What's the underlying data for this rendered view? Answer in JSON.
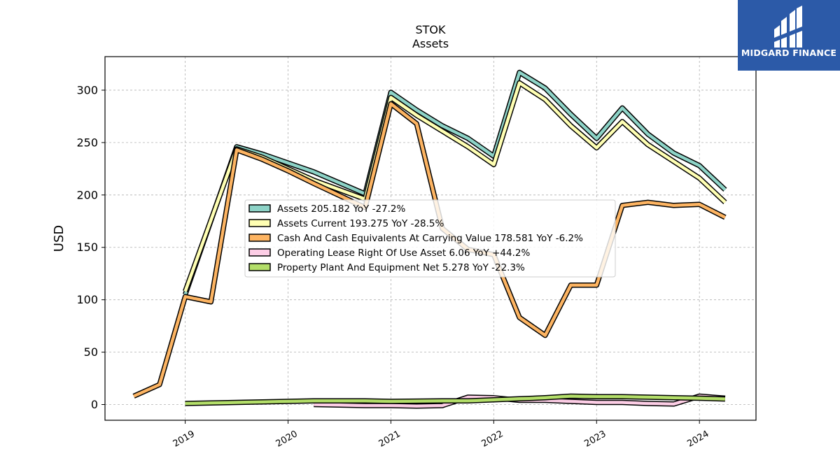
{
  "brand": {
    "name": "MIDGARD FINANCE",
    "background": "#2c5aa8"
  },
  "chart_data": {
    "type": "line",
    "title": "STOK",
    "subtitle": "Assets",
    "xlabel": "",
    "ylabel": "USD",
    "ylim": [
      -15,
      332
    ],
    "xlim": [
      2018.22,
      2024.55
    ],
    "yticks": [
      0,
      50,
      100,
      150,
      200,
      250,
      300
    ],
    "xticks": [
      {
        "value": 2019,
        "label": "2019"
      },
      {
        "value": 2020,
        "label": "2020"
      },
      {
        "value": 2021,
        "label": "2021"
      },
      {
        "value": 2022,
        "label": "2022"
      },
      {
        "value": 2023,
        "label": "2023"
      },
      {
        "value": 2024,
        "label": "2024"
      }
    ],
    "grid": true,
    "legend_position": "center",
    "series": [
      {
        "name": "Assets",
        "legend": "Assets  205.182 YoY -27.2%",
        "color": "#8dd3c7",
        "points": [
          [
            2019.0,
            105
          ],
          [
            2019.5,
            246
          ],
          [
            2019.75,
            239
          ],
          [
            2020.25,
            222
          ],
          [
            2020.75,
            201
          ],
          [
            2021.0,
            298
          ],
          [
            2021.25,
            281
          ],
          [
            2021.5,
            266
          ],
          [
            2021.75,
            254
          ],
          [
            2022.0,
            237
          ],
          [
            2022.25,
            317
          ],
          [
            2022.5,
            302
          ],
          [
            2022.75,
            277
          ],
          [
            2023.0,
            254
          ],
          [
            2023.25,
            283
          ],
          [
            2023.5,
            258
          ],
          [
            2023.75,
            240
          ],
          [
            2024.0,
            228
          ],
          [
            2024.25,
            205
          ]
        ]
      },
      {
        "name": "Assets Current",
        "legend": "Assets Current  193.275 YoY -28.5%",
        "color": "#ffffb3",
        "points": [
          [
            2019.0,
            108
          ],
          [
            2019.5,
            244
          ],
          [
            2019.75,
            236
          ],
          [
            2020.25,
            214
          ],
          [
            2020.75,
            196
          ],
          [
            2021.0,
            293
          ],
          [
            2021.25,
            276
          ],
          [
            2021.5,
            261
          ],
          [
            2021.75,
            246
          ],
          [
            2022.0,
            229
          ],
          [
            2022.25,
            307
          ],
          [
            2022.5,
            291
          ],
          [
            2022.75,
            266
          ],
          [
            2023.0,
            245
          ],
          [
            2023.25,
            270
          ],
          [
            2023.5,
            248
          ],
          [
            2023.75,
            232
          ],
          [
            2024.0,
            216
          ],
          [
            2024.25,
            193
          ]
        ]
      },
      {
        "name": "Cash And Cash Equivalents At Carrying Value",
        "legend": "Cash And Cash Equivalents At Carrying Value  178.581 YoY -6.2%",
        "color": "#fdb462",
        "points": [
          [
            2018.5,
            8
          ],
          [
            2018.75,
            19
          ],
          [
            2019.0,
            103
          ],
          [
            2019.25,
            98
          ],
          [
            2019.5,
            243
          ],
          [
            2019.75,
            234
          ],
          [
            2020.0,
            223
          ],
          [
            2020.25,
            211
          ],
          [
            2020.75,
            188
          ],
          [
            2021.0,
            287
          ],
          [
            2021.25,
            268
          ],
          [
            2021.5,
            168
          ],
          [
            2021.75,
            148
          ],
          [
            2022.0,
            143
          ],
          [
            2022.25,
            83
          ],
          [
            2022.5,
            66
          ],
          [
            2022.75,
            114
          ],
          [
            2023.0,
            114
          ],
          [
            2023.25,
            190
          ],
          [
            2023.5,
            193
          ],
          [
            2023.75,
            190
          ],
          [
            2024.0,
            191
          ],
          [
            2024.25,
            178.6
          ]
        ]
      },
      {
        "name": "Operating Lease Right Of Use Asset",
        "legend": "Operating Lease Right Of Use Asset  6.06 YoY +44.2%",
        "color": "#fccde5",
        "points": [
          [
            2020.25,
            0
          ],
          [
            2020.75,
            -1
          ],
          [
            2021.0,
            -1
          ],
          [
            2021.25,
            -1.5
          ],
          [
            2021.5,
            -1
          ],
          [
            2021.75,
            7
          ],
          [
            2022.0,
            6.5
          ],
          [
            2022.25,
            4
          ],
          [
            2022.5,
            4
          ],
          [
            2022.75,
            3
          ],
          [
            2023.0,
            2
          ],
          [
            2023.25,
            2
          ],
          [
            2023.5,
            1
          ],
          [
            2023.75,
            0.5
          ],
          [
            2024.0,
            8
          ],
          [
            2024.25,
            6.06
          ]
        ]
      },
      {
        "name": "Property Plant And Equipment Net",
        "legend": "Property Plant And Equipment Net  5.278 YoY -22.3%",
        "color": "#b3de69",
        "points": [
          [
            2019.0,
            1
          ],
          [
            2019.5,
            2
          ],
          [
            2019.75,
            2.5
          ],
          [
            2020.0,
            3
          ],
          [
            2020.25,
            3.5
          ],
          [
            2020.75,
            3.5
          ],
          [
            2021.0,
            3
          ],
          [
            2021.5,
            3.5
          ],
          [
            2021.75,
            3.5
          ],
          [
            2022.0,
            4.5
          ],
          [
            2022.25,
            5.5
          ],
          [
            2022.5,
            6.5
          ],
          [
            2022.75,
            8
          ],
          [
            2023.0,
            7.5
          ],
          [
            2023.25,
            7.5
          ],
          [
            2023.5,
            7
          ],
          [
            2023.75,
            6.5
          ],
          [
            2024.0,
            6
          ],
          [
            2024.25,
            5.278
          ]
        ]
      }
    ]
  }
}
